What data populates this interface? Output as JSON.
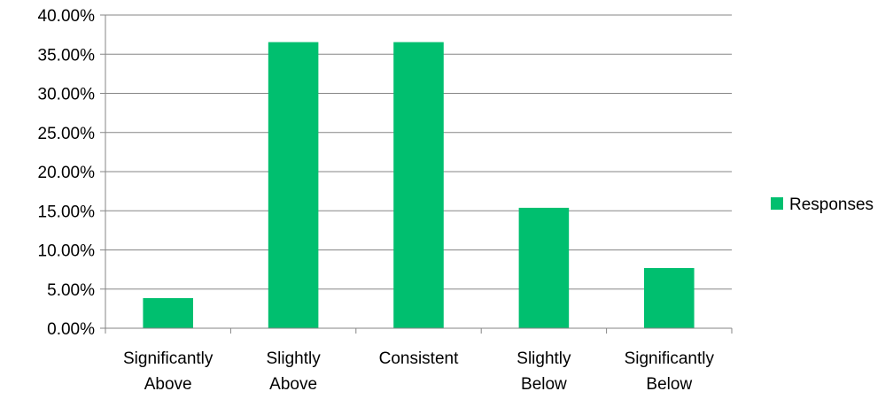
{
  "chart_data": {
    "type": "bar",
    "categories": [
      [
        "Significantly",
        "Above"
      ],
      [
        "Slightly",
        "Above"
      ],
      [
        "Consistent"
      ],
      [
        "Slightly",
        "Below"
      ],
      [
        "Significantly",
        "Below"
      ]
    ],
    "series": [
      {
        "name": "Responses",
        "values": [
          3.85,
          36.54,
          36.54,
          15.38,
          7.69
        ],
        "color": "#00bf6f"
      }
    ],
    "ylim": [
      0,
      40
    ],
    "yticks": [
      0,
      5,
      10,
      15,
      20,
      25,
      30,
      35,
      40
    ],
    "ytick_labels": [
      "0.00%",
      "5.00%",
      "10.00%",
      "15.00%",
      "20.00%",
      "25.00%",
      "30.00%",
      "35.00%",
      "40.00%"
    ],
    "grid": true,
    "grid_color": "#868686",
    "axis_color": "#868686",
    "legend_position": "right",
    "title": "",
    "xlabel": "",
    "ylabel": ""
  }
}
